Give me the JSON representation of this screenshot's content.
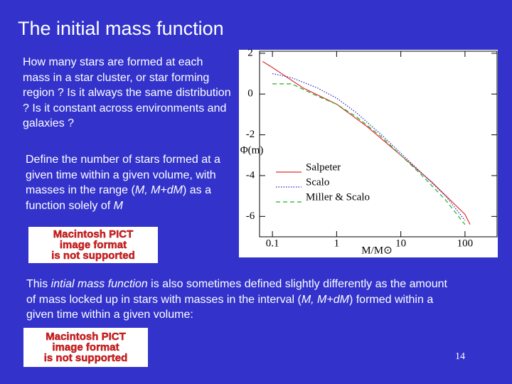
{
  "slide": {
    "title": "The initial mass function",
    "para_1": "How many stars are formed at each mass in a star cluster, or star forming region ? Is it always the same distribution ? Is it constant across environments and galaxies ?",
    "para_2": [
      "Define the number of stars formed at a given time within a given volume, with masses in the range (",
      "M, M+dM",
      ") as a function solely of ",
      "M"
    ],
    "para_3": [
      "This ",
      "intial mass function",
      " is also sometimes defined slightly differently as the amount of mass locked up in stars with masses in the interval (",
      "M, M+dM",
      ") formed within a given time  within a given volume:"
    ],
    "placeholder_1": [
      "Macintosh PICT",
      "image format",
      "is not supported"
    ],
    "placeholder_2": [
      "Macintosh PICT",
      "image format",
      "is not supported"
    ],
    "page_number": "14"
  },
  "chart_data": {
    "type": "line",
    "y_label": "Φ(m)",
    "x_label": "M/M⊙",
    "xlim": [
      0.063,
      316
    ],
    "xticks": [
      0.1,
      1,
      10,
      100
    ],
    "xscale": "log",
    "ylim": [
      -7,
      2.1
    ],
    "yticks": [
      2,
      0,
      -2,
      -4,
      -6
    ],
    "series": [
      {
        "name": "Salpeter",
        "color": "#e03030",
        "dash": "none",
        "x": [
          0.07,
          0.1,
          0.3,
          1,
          3,
          10,
          30,
          100,
          120
        ],
        "values": [
          1.6,
          1.3,
          0.3,
          -0.5,
          -1.6,
          -3.0,
          -4.3,
          -5.9,
          -6.4
        ]
      },
      {
        "name": "Scalo",
        "color": "#2828c0",
        "dash": "1.5 2",
        "x": [
          0.1,
          0.2,
          0.5,
          1,
          2,
          5,
          10,
          20,
          50,
          100
        ],
        "values": [
          1.0,
          0.8,
          0.3,
          -0.2,
          -0.9,
          -2.0,
          -2.9,
          -3.8,
          -5.0,
          -6.2
        ]
      },
      {
        "name": "Miller & Scalo",
        "color": "#20b020",
        "dash": "6 4",
        "x": [
          0.1,
          0.2,
          0.5,
          1,
          2,
          5,
          10,
          20,
          50,
          100
        ],
        "values": [
          0.5,
          0.5,
          -0.1,
          -0.5,
          -1.1,
          -2.1,
          -3.0,
          -3.9,
          -5.2,
          -6.4
        ]
      }
    ]
  }
}
